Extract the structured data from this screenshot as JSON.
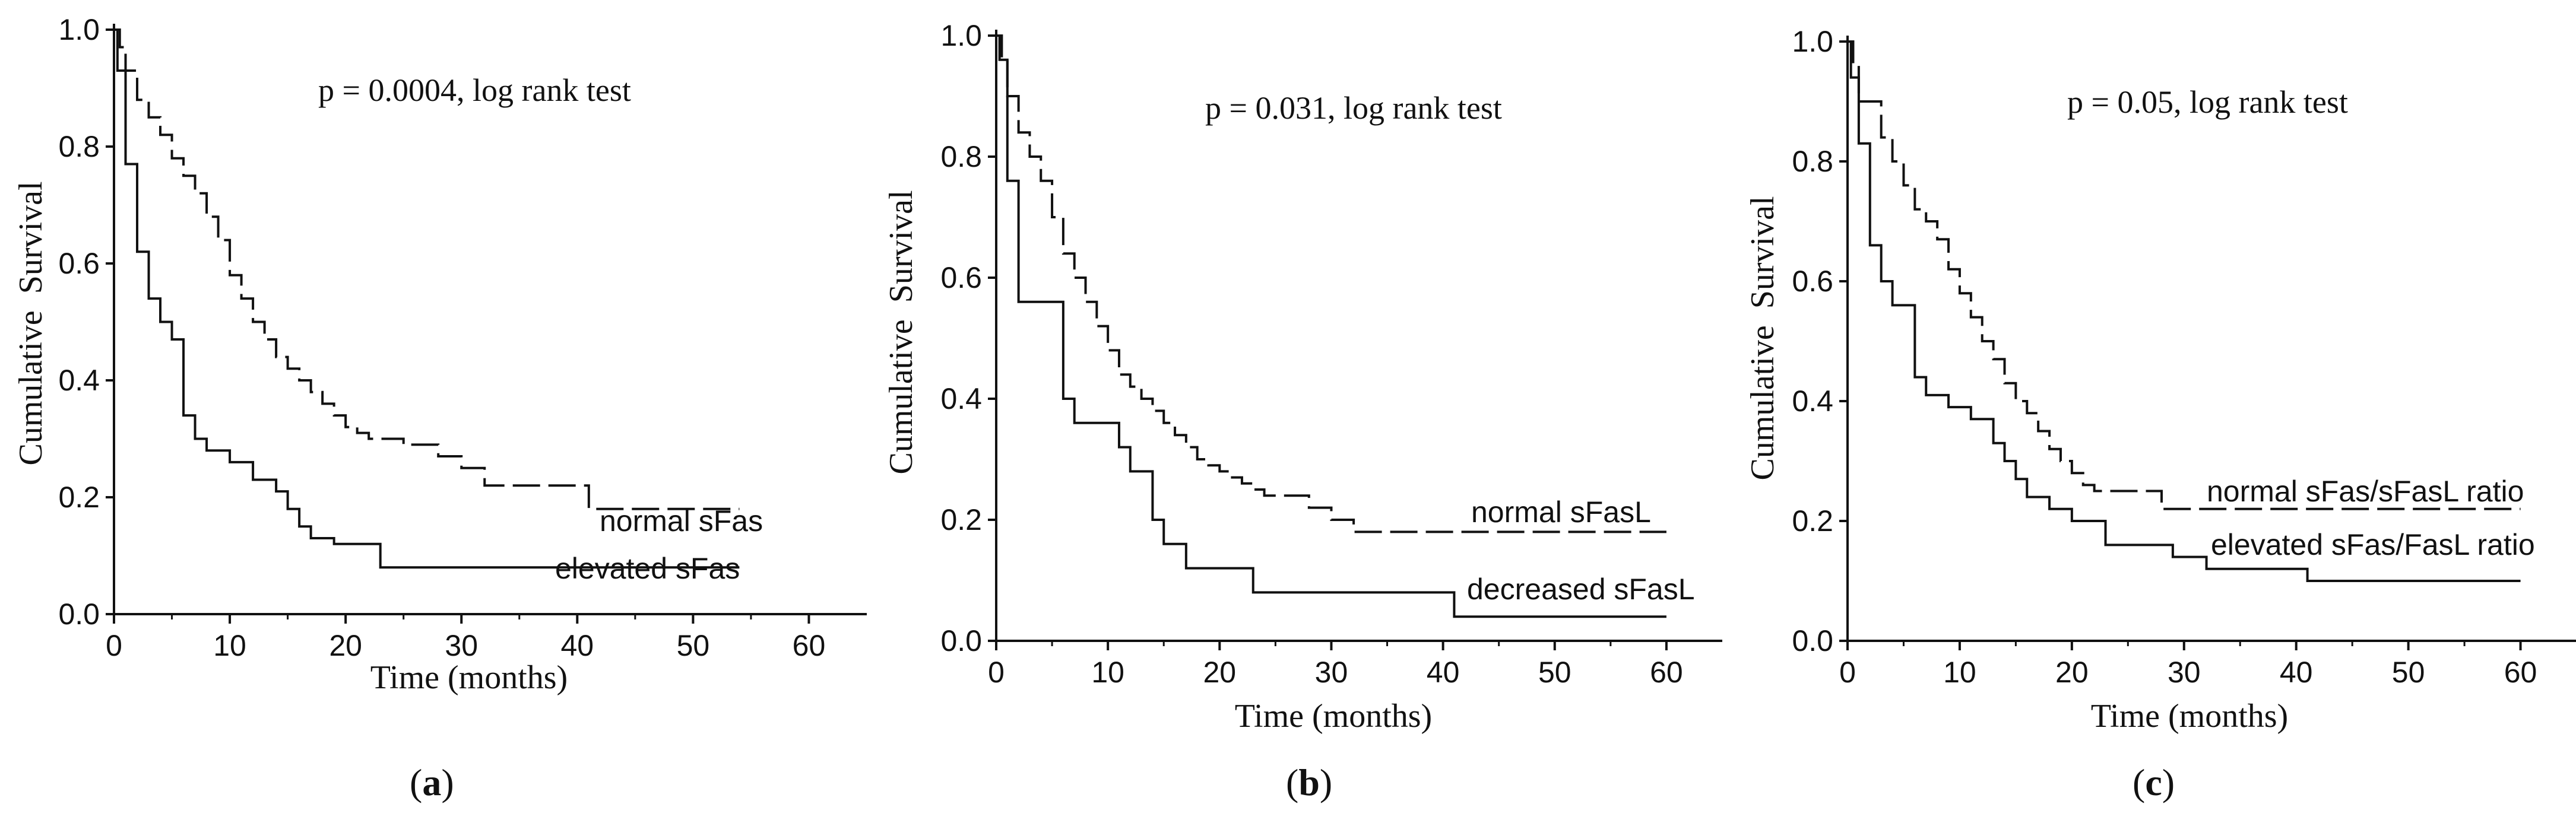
{
  "chart_data": [
    {
      "type": "line",
      "subtype": "kaplan-meier step",
      "panel_label": "a",
      "annotation": "p = 0.0004, log rank test",
      "xlabel": "Time (months)",
      "ylabel": "Cumulative  Survival",
      "xlim": [
        0,
        65
      ],
      "ylim": [
        0,
        1
      ],
      "x_ticks": [
        0,
        10,
        20,
        30,
        40,
        50,
        60
      ],
      "y_ticks": [
        "0.0",
        "0.2",
        "0.4",
        "0.6",
        "0.8",
        "1.0"
      ],
      "series": [
        {
          "name": "normal sFas",
          "line": "dashed",
          "x": [
            0,
            0.5,
            1,
            2,
            3,
            4,
            5,
            6,
            7,
            8,
            9,
            10,
            11,
            12,
            13,
            14,
            15,
            16,
            17,
            18,
            19,
            20,
            21,
            22,
            23,
            25,
            28,
            30,
            32,
            41,
            54
          ],
          "y": [
            1.0,
            0.97,
            0.93,
            0.88,
            0.85,
            0.82,
            0.78,
            0.75,
            0.72,
            0.68,
            0.64,
            0.58,
            0.54,
            0.5,
            0.47,
            0.44,
            0.42,
            0.4,
            0.38,
            0.36,
            0.34,
            0.32,
            0.31,
            0.3,
            0.3,
            0.29,
            0.27,
            0.25,
            0.22,
            0.18,
            0.18
          ]
        },
        {
          "name": "elevated sFas",
          "line": "solid",
          "x": [
            0,
            0.3,
            1,
            2,
            3,
            4,
            5,
            6,
            7,
            8,
            10,
            12,
            14,
            15,
            16,
            17,
            19,
            23,
            54
          ],
          "y": [
            1.0,
            0.93,
            0.77,
            0.62,
            0.54,
            0.5,
            0.47,
            0.34,
            0.3,
            0.28,
            0.26,
            0.23,
            0.21,
            0.18,
            0.15,
            0.13,
            0.12,
            0.08,
            0.08
          ]
        }
      ]
    },
    {
      "type": "line",
      "subtype": "kaplan-meier step",
      "panel_label": "b",
      "annotation": "p = 0.031, log rank test",
      "xlabel": "Time (months)",
      "ylabel": "Cumulative  Survival",
      "xlim": [
        0,
        65
      ],
      "ylim": [
        0,
        1
      ],
      "x_ticks": [
        0,
        10,
        20,
        30,
        40,
        50,
        60
      ],
      "y_ticks": [
        "0.0",
        "0.2",
        "0.4",
        "0.6",
        "0.8",
        "1.0"
      ],
      "series": [
        {
          "name": "normal sFasL",
          "line": "dashed",
          "x": [
            0,
            0.5,
            1,
            2,
            3,
            4,
            5,
            6,
            7,
            8,
            9,
            10,
            11,
            12,
            13,
            14,
            15,
            16,
            17,
            18,
            19,
            20,
            21,
            22,
            23,
            24,
            25,
            28,
            30,
            32,
            60
          ],
          "y": [
            1.0,
            0.96,
            0.9,
            0.84,
            0.8,
            0.76,
            0.7,
            0.64,
            0.6,
            0.56,
            0.52,
            0.48,
            0.44,
            0.42,
            0.4,
            0.38,
            0.36,
            0.34,
            0.32,
            0.3,
            0.29,
            0.28,
            0.27,
            0.26,
            0.25,
            0.24,
            0.24,
            0.22,
            0.2,
            0.18,
            0.18
          ]
        },
        {
          "name": "decreased sFasL",
          "line": "solid",
          "x": [
            0,
            0.3,
            1,
            2,
            5,
            6,
            7,
            11,
            12,
            14,
            15,
            17,
            23,
            41,
            60
          ],
          "y": [
            1.0,
            0.96,
            0.76,
            0.56,
            0.56,
            0.4,
            0.36,
            0.32,
            0.28,
            0.2,
            0.16,
            0.12,
            0.08,
            0.04,
            0.04
          ]
        }
      ]
    },
    {
      "type": "line",
      "subtype": "kaplan-meier step",
      "panel_label": "c",
      "annotation": "p = 0.05, log rank test",
      "xlabel": "Time (months)",
      "ylabel": "Cumulative  Survival",
      "xlim": [
        0,
        65
      ],
      "ylim": [
        0,
        1
      ],
      "x_ticks": [
        0,
        10,
        20,
        30,
        40,
        50,
        60
      ],
      "y_ticks": [
        "0.0",
        "0.2",
        "0.4",
        "0.6",
        "0.8",
        "1.0"
      ],
      "series": [
        {
          "name": "normal sFas/sFasL ratio",
          "line": "dashed",
          "x": [
            0,
            0.5,
            1,
            3,
            4,
            5,
            6,
            7,
            8,
            9,
            10,
            11,
            12,
            13,
            14,
            15,
            16,
            17,
            18,
            19,
            20,
            21,
            22,
            28,
            60
          ],
          "y": [
            1.0,
            0.96,
            0.9,
            0.84,
            0.8,
            0.76,
            0.72,
            0.7,
            0.67,
            0.62,
            0.58,
            0.54,
            0.5,
            0.47,
            0.43,
            0.4,
            0.38,
            0.35,
            0.32,
            0.3,
            0.28,
            0.26,
            0.25,
            0.22,
            0.22
          ]
        },
        {
          "name": "elevated sFas/FasL ratio",
          "line": "solid",
          "x": [
            0,
            0.3,
            1,
            2,
            3,
            4,
            6,
            7,
            9,
            11,
            13,
            14,
            15,
            16,
            18,
            20,
            23,
            29,
            32,
            41,
            60
          ],
          "y": [
            1.0,
            0.94,
            0.83,
            0.66,
            0.6,
            0.56,
            0.44,
            0.41,
            0.39,
            0.37,
            0.33,
            0.3,
            0.27,
            0.24,
            0.22,
            0.2,
            0.16,
            0.14,
            0.12,
            0.1,
            0.1
          ]
        }
      ]
    }
  ]
}
